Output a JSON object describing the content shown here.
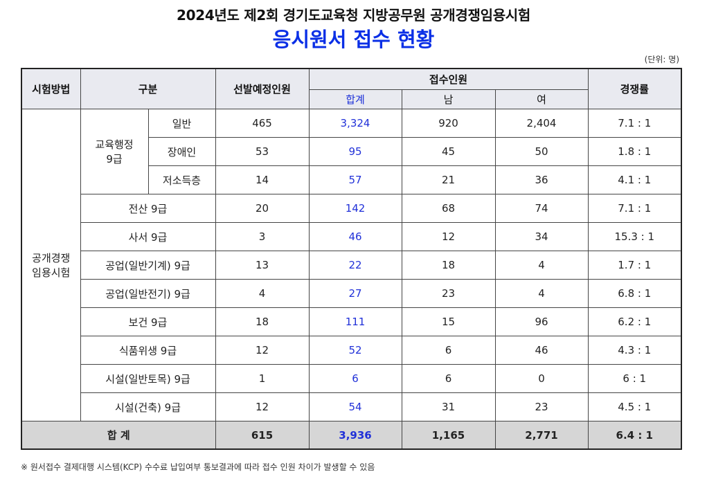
{
  "title": "2024년도 제2회 경기도교육청 지방공무원 공개경쟁임용시험",
  "subtitle": "응시원서 접수 현황",
  "unit": "(단위: 명)",
  "headers": {
    "method": "시험방법",
    "category": "구분",
    "planned": "선발예정인원",
    "applicants": "접수인원",
    "total": "합계",
    "male": "남",
    "female": "여",
    "ratio": "경쟁률"
  },
  "method_label_line1": "공개경쟁",
  "method_label_line2": "임용시험",
  "group_label_line1": "교육행정",
  "group_label_line2": "9급",
  "rows": [
    {
      "label": "일반",
      "planned": "465",
      "total": "3,324",
      "male": "920",
      "female": "2,404",
      "ratio": "7.1 : 1"
    },
    {
      "label": "장애인",
      "planned": "53",
      "total": "95",
      "male": "45",
      "female": "50",
      "ratio": "1.8 : 1"
    },
    {
      "label": "저소득층",
      "planned": "14",
      "total": "57",
      "male": "21",
      "female": "36",
      "ratio": "4.1 : 1"
    },
    {
      "label": "전산 9급",
      "planned": "20",
      "total": "142",
      "male": "68",
      "female": "74",
      "ratio": "7.1 : 1"
    },
    {
      "label": "사서 9급",
      "planned": "3",
      "total": "46",
      "male": "12",
      "female": "34",
      "ratio": "15.3 : 1"
    },
    {
      "label": "공업(일반기계) 9급",
      "planned": "13",
      "total": "22",
      "male": "18",
      "female": "4",
      "ratio": "1.7 : 1"
    },
    {
      "label": "공업(일반전기) 9급",
      "planned": "4",
      "total": "27",
      "male": "23",
      "female": "4",
      "ratio": "6.8 : 1"
    },
    {
      "label": "보건 9급",
      "planned": "18",
      "total": "111",
      "male": "15",
      "female": "96",
      "ratio": "6.2 : 1"
    },
    {
      "label": "식품위생 9급",
      "planned": "12",
      "total": "52",
      "male": "6",
      "female": "46",
      "ratio": "4.3 : 1"
    },
    {
      "label": "시설(일반토목) 9급",
      "planned": "1",
      "total": "6",
      "male": "6",
      "female": "0",
      "ratio": "6 : 1"
    },
    {
      "label": "시설(건축) 9급",
      "planned": "12",
      "total": "54",
      "male": "31",
      "female": "23",
      "ratio": "4.5 : 1"
    }
  ],
  "total_row": {
    "label": "합 계",
    "planned": "615",
    "total": "3,936",
    "male": "1,165",
    "female": "2,771",
    "ratio": "6.4 : 1"
  },
  "note": "※ 원서접수 결제대행 시스템(KCP) 수수료 납입여부 통보결과에 따라 접수 인원 차이가 발생할 수 있음",
  "colors": {
    "accent": "#0a2fe6",
    "header_bg": "#e9eaf0",
    "total_bg": "#d6d6d6"
  }
}
